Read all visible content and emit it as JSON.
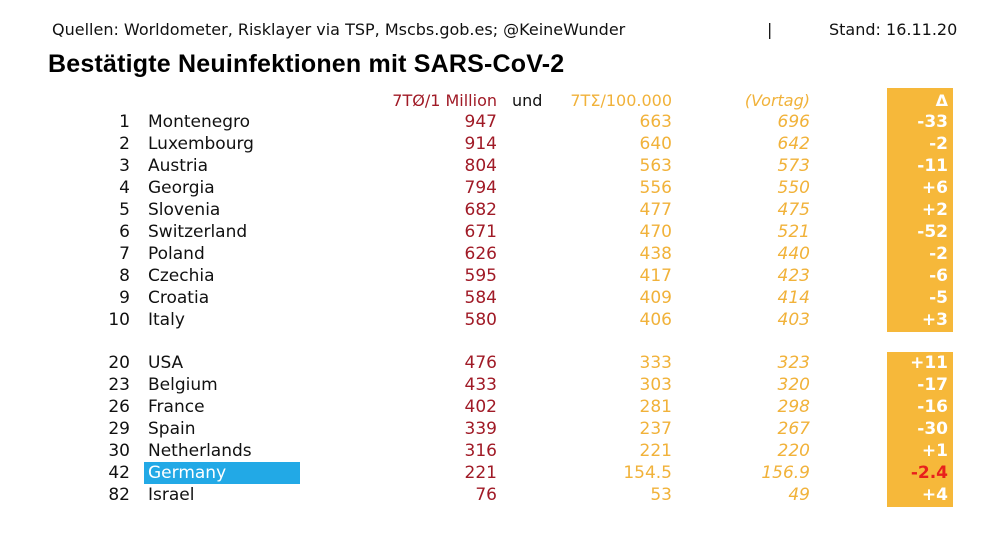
{
  "header": {
    "sources": "Quellen: Worldometer, Risklayer via TSP, Mscbs.gob.es; @KeineWunder",
    "separator": "|",
    "stand": "Stand: 16.11.20",
    "title": "Bestätigte Neuinfektionen mit SARS-CoV-2"
  },
  "columns": {
    "per_million": "7TØ/1 Million",
    "und": "und",
    "per_100k": "7TΣ/100.000",
    "vortag": "(Vortag)",
    "delta": "Δ"
  },
  "colors": {
    "red": "#a01a26",
    "orange": "#f1b23a",
    "box": "#f6b83a",
    "highlight": "#22a9e6"
  },
  "rows_top": [
    {
      "rank": "1",
      "country": "Montenegro",
      "per_million": "947",
      "per_100k": "663",
      "vortag": "696",
      "delta": "-33"
    },
    {
      "rank": "2",
      "country": "Luxembourg",
      "per_million": "914",
      "per_100k": "640",
      "vortag": "642",
      "delta": "-2"
    },
    {
      "rank": "3",
      "country": "Austria",
      "per_million": "804",
      "per_100k": "563",
      "vortag": "573",
      "delta": "-11"
    },
    {
      "rank": "4",
      "country": "Georgia",
      "per_million": "794",
      "per_100k": "556",
      "vortag": "550",
      "delta": "+6"
    },
    {
      "rank": "5",
      "country": "Slovenia",
      "per_million": "682",
      "per_100k": "477",
      "vortag": "475",
      "delta": "+2"
    },
    {
      "rank": "6",
      "country": "Switzerland",
      "per_million": "671",
      "per_100k": "470",
      "vortag": "521",
      "delta": "-52"
    },
    {
      "rank": "7",
      "country": "Poland",
      "per_million": "626",
      "per_100k": "438",
      "vortag": "440",
      "delta": "-2"
    },
    {
      "rank": "8",
      "country": "Czechia",
      "per_million": "595",
      "per_100k": "417",
      "vortag": "423",
      "delta": "-6"
    },
    {
      "rank": "9",
      "country": "Croatia",
      "per_million": "584",
      "per_100k": "409",
      "vortag": "414",
      "delta": "-5"
    },
    {
      "rank": "10",
      "country": "Italy",
      "per_million": "580",
      "per_100k": "406",
      "vortag": "403",
      "delta": "+3"
    }
  ],
  "rows_bottom": [
    {
      "rank": "20",
      "country": "USA",
      "per_million": "476",
      "per_100k": "333",
      "vortag": "323",
      "delta": "+11"
    },
    {
      "rank": "23",
      "country": "Belgium",
      "per_million": "433",
      "per_100k": "303",
      "vortag": "320",
      "delta": "-17"
    },
    {
      "rank": "26",
      "country": "France",
      "per_million": "402",
      "per_100k": "281",
      "vortag": "298",
      "delta": "-16"
    },
    {
      "rank": "29",
      "country": "Spain",
      "per_million": "339",
      "per_100k": "237",
      "vortag": "267",
      "delta": "-30"
    },
    {
      "rank": "30",
      "country": "Netherlands",
      "per_million": "316",
      "per_100k": "221",
      "vortag": "220",
      "delta": "+1"
    },
    {
      "rank": "42",
      "country": "Germany",
      "per_million": "221",
      "per_100k": "154.5",
      "vortag": "156.9",
      "delta": "-2.4",
      "highlight": true
    },
    {
      "rank": "82",
      "country": "Israel",
      "per_million": "76",
      "per_100k": "53",
      "vortag": "49",
      "delta": "+4"
    }
  ]
}
